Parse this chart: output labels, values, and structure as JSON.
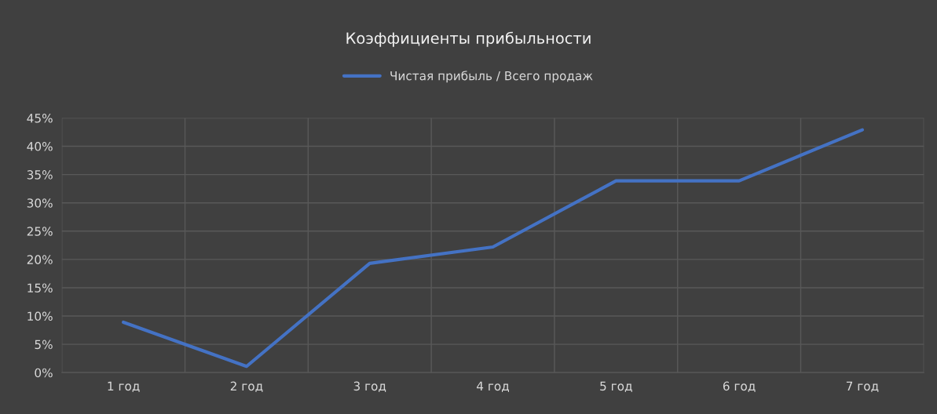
{
  "chart_data": {
    "type": "line",
    "title": "Коэффициенты прибыльности",
    "categories": [
      "1 год",
      "2 год",
      "3 год",
      "4 год",
      "5 год",
      "6 год",
      "7 год"
    ],
    "series": [
      {
        "name": "Чистая прибыль / Всего продаж",
        "color": "#4472c4",
        "values": [
          8.9,
          1.1,
          19.3,
          22.2,
          33.9,
          33.9,
          42.9
        ]
      }
    ],
    "ylim": [
      0,
      45
    ],
    "yticks": [
      {
        "value": 0,
        "label": "0%"
      },
      {
        "value": 5,
        "label": "5%"
      },
      {
        "value": 10,
        "label": "10%"
      },
      {
        "value": 15,
        "label": "15%"
      },
      {
        "value": 20,
        "label": "20%"
      },
      {
        "value": 25,
        "label": "25%"
      },
      {
        "value": 30,
        "label": "30%"
      },
      {
        "value": 35,
        "label": "35%"
      },
      {
        "value": 40,
        "label": "40%"
      },
      {
        "value": 45,
        "label": "45%"
      }
    ],
    "grid": true,
    "legend": "top",
    "marker": "none",
    "line_style": "solid"
  }
}
